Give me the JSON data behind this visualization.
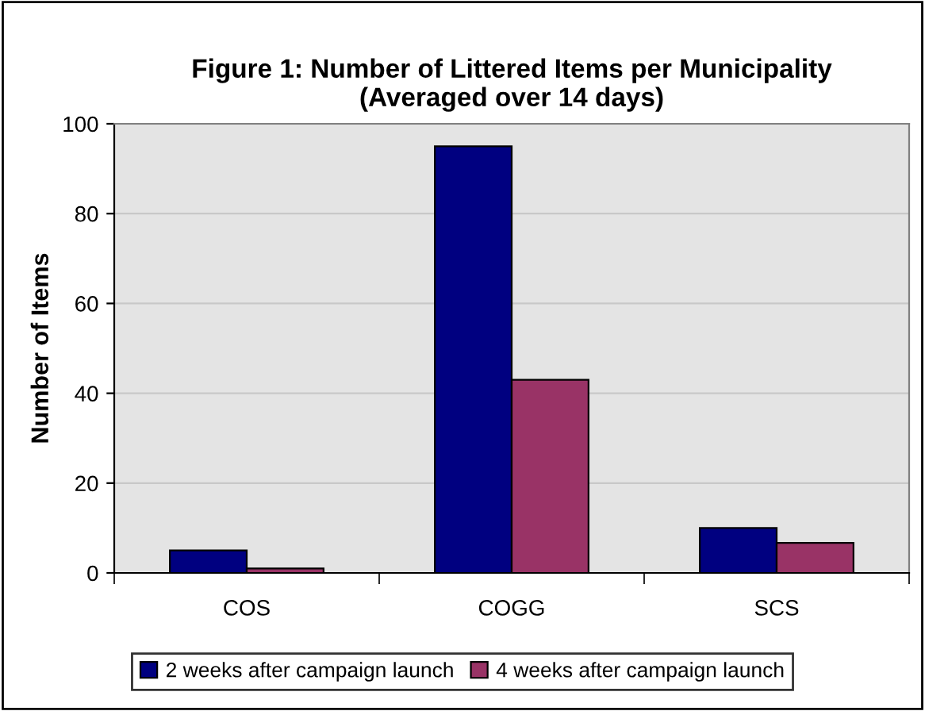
{
  "chart_data": {
    "type": "bar",
    "title": "Figure 1: Number of Littered Items per Municipality\n(Averaged over 14 days)",
    "ylabel": "Number of Items",
    "categories": [
      "COS",
      "COGG",
      "SCS"
    ],
    "series": [
      {
        "name": "2 weeks after campaign launch",
        "color": "#000080",
        "values": [
          5,
          95,
          10
        ]
      },
      {
        "name": "4 weeks after campaign launch",
        "color": "#993366",
        "values": [
          1,
          43,
          6.7
        ]
      }
    ],
    "ylim": [
      0,
      100
    ],
    "yticks": [
      0,
      20,
      40,
      60,
      80,
      100
    ],
    "grid": "y",
    "legend": "bottom"
  }
}
